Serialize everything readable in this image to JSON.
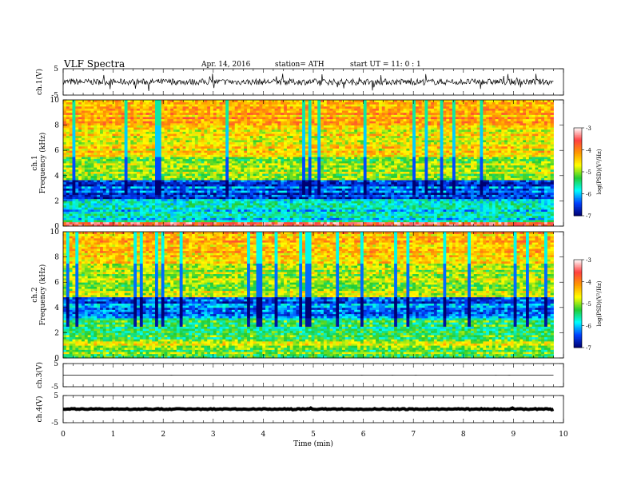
{
  "header": {
    "title": "VLF  Spectra",
    "date": "Apr. 14,  2016",
    "station": "station= ATH",
    "start_ut": "start  UT  =    11: 0   : 1"
  },
  "chart_data": [
    {
      "type": "line",
      "panel": "ch1",
      "ylabel": "ch.1(V)",
      "ylim": [
        -5,
        5
      ],
      "y_ticks": [
        "5",
        "-5"
      ],
      "xlim": [
        0,
        9.8
      ],
      "baseline": 0,
      "amplitude_range": [
        -3.5,
        3.2
      ]
    },
    {
      "type": "heatmap",
      "panel": "ch1",
      "ylabel": "ch.1\nFrequency  (kHz)",
      "ylim": [
        0,
        10
      ],
      "y_ticks": [
        "0",
        "2",
        "4",
        "6",
        "8",
        "10"
      ],
      "xlim": [
        0,
        9.8
      ],
      "colorbar": {
        "label": "log(PSD)(V²/Hz)",
        "range": [
          -7,
          -3
        ],
        "ticks": [
          "-3",
          "-4",
          "-5",
          "-6",
          "-7"
        ],
        "colormap": [
          "#ffffff",
          "#ff4040",
          "#ff9900",
          "#ffff00",
          "#22cc33",
          "#00ffff",
          "#0040ff",
          "#000070"
        ]
      },
      "bands": [
        {
          "range_khz": [
            0,
            0.3
          ],
          "level": -3.6
        },
        {
          "range_khz": [
            0.3,
            2.2
          ],
          "level": -5.8
        },
        {
          "range_khz": [
            2.2,
            3.6
          ],
          "level": -6.4
        },
        {
          "range_khz": [
            3.6,
            5.5
          ],
          "level": -5.0
        },
        {
          "range_khz": [
            5.5,
            8.0
          ],
          "level": -4.6
        },
        {
          "range_khz": [
            8.0,
            10
          ],
          "level": -4.2
        }
      ]
    },
    {
      "type": "heatmap",
      "panel": "ch2",
      "ylabel": "ch.2\nFrequency  (kHz)",
      "ylim": [
        0,
        10
      ],
      "y_ticks": [
        "0",
        "2",
        "4",
        "6",
        "8",
        "10"
      ],
      "xlim": [
        0,
        9.8
      ],
      "colorbar": {
        "label": "log(PSD)(V²/Hz)",
        "range": [
          -7,
          -3
        ],
        "ticks": [
          "-3",
          "-4",
          "-5",
          "-6",
          "-7"
        ],
        "colormap": [
          "#ffffff",
          "#ff4040",
          "#ff9900",
          "#ffff00",
          "#22cc33",
          "#00ffff",
          "#0040ff",
          "#000070"
        ]
      },
      "bands": [
        {
          "range_khz": [
            0,
            0.6
          ],
          "level": -5.2
        },
        {
          "range_khz": [
            0.6,
            1.4
          ],
          "level": -4.8
        },
        {
          "range_khz": [
            1.4,
            3.2
          ],
          "level": -5.4
        },
        {
          "range_khz": [
            3.2,
            4.8
          ],
          "level": -6.3
        },
        {
          "range_khz": [
            4.8,
            7.5
          ],
          "level": -4.9
        },
        {
          "range_khz": [
            7.5,
            10
          ],
          "level": -4.4
        }
      ]
    },
    {
      "type": "line",
      "panel": "ch3",
      "ylabel": "ch.3(V)",
      "ylim": [
        -5,
        5
      ],
      "y_ticks": [
        "5",
        "-5"
      ],
      "xlim": [
        0,
        9.8
      ],
      "baseline": 0,
      "amplitude_range": [
        -0.05,
        0.05
      ]
    },
    {
      "type": "line",
      "panel": "ch4",
      "ylabel": "ch.4(V)",
      "ylim": [
        -5,
        5
      ],
      "y_ticks": [
        "5",
        "-5"
      ],
      "xlim": [
        0,
        9.8
      ],
      "baseline": 0,
      "amplitude_range": [
        -0.5,
        0.5
      ]
    }
  ],
  "x_axis": {
    "label": "Time  (min)",
    "range": [
      0,
      10
    ],
    "ticks": [
      "0",
      "1",
      "2",
      "3",
      "4",
      "5",
      "6",
      "7",
      "8",
      "9",
      "10"
    ]
  }
}
